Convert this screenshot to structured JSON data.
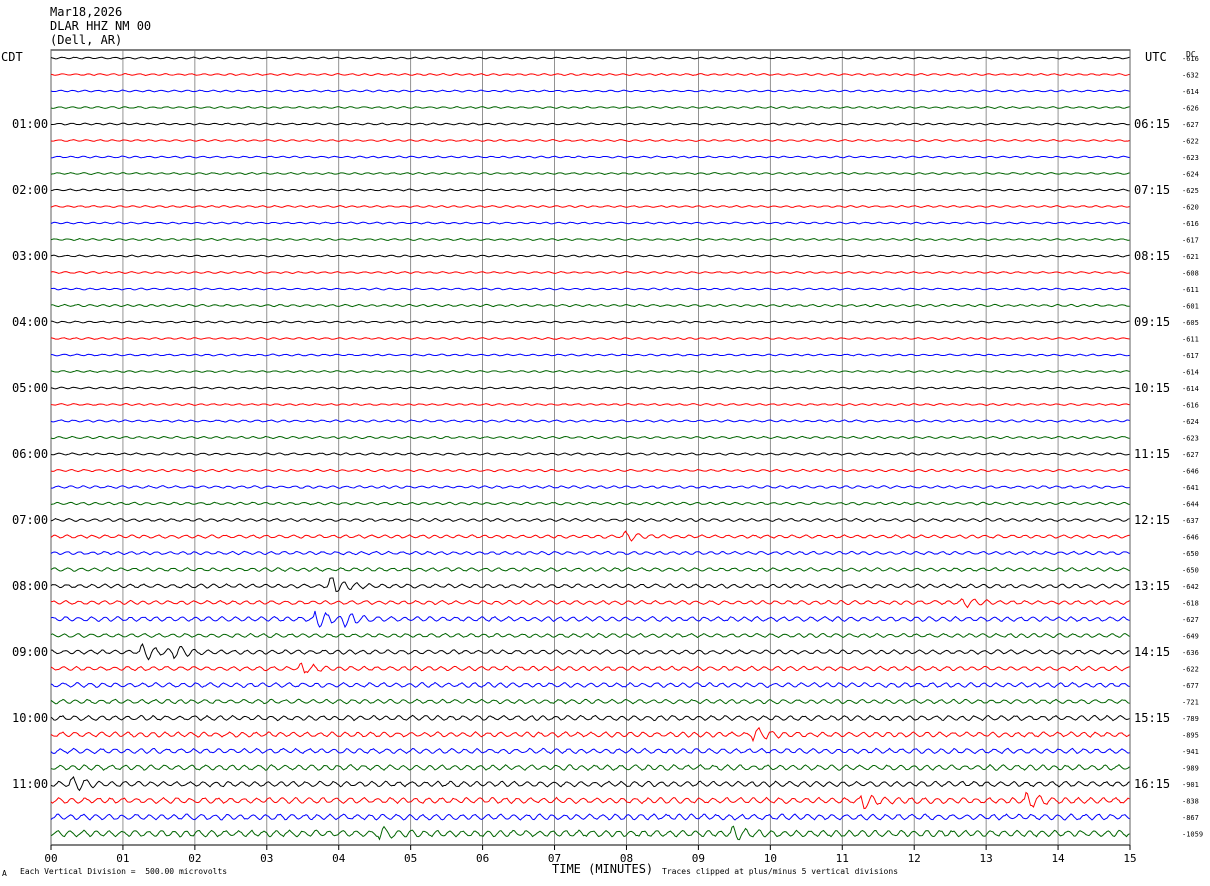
{
  "header": {
    "date": "Mar18,2026",
    "station": "DLAR HHZ NM 00",
    "location": "(Dell, AR)"
  },
  "left_axis_title": "CDT",
  "right_axis_title": "UTC",
  "dc_title": "DC",
  "footer": {
    "left_mark": "A",
    "scale": "Each Vertical Division =  500.00 microvolts",
    "clip": "Traces clipped at plus/minus 5 vertical divisions"
  },
  "colors": {
    "trace_cycle": [
      "#000000",
      "#ff0000",
      "#0000ff",
      "#006400"
    ],
    "grid": "#000000"
  },
  "chart_data": {
    "type": "line",
    "title": "",
    "xlabel": "TIME (MINUTES)",
    "xlim": [
      0,
      15
    ],
    "x_ticks": [
      "00",
      "01",
      "02",
      "03",
      "04",
      "05",
      "06",
      "07",
      "08",
      "09",
      "10",
      "11",
      "12",
      "13",
      "14",
      "15"
    ],
    "trace_count": 48,
    "left_hour_labels": [
      "01:00",
      "02:00",
      "03:00",
      "04:00",
      "05:00",
      "06:00",
      "07:00",
      "08:00",
      "09:00",
      "10:00",
      "11:00"
    ],
    "right_hour_labels": [
      "06:15",
      "07:15",
      "08:15",
      "09:15",
      "10:15",
      "11:15",
      "12:15",
      "13:15",
      "14:15",
      "15:15",
      "16:15"
    ],
    "hour_label_trace_index": [
      4,
      8,
      12,
      16,
      20,
      24,
      28,
      32,
      36,
      40,
      44
    ],
    "dc_offsets": [
      "-616",
      "-632",
      "-614",
      "-626",
      "-627",
      "-622",
      "-623",
      "-624",
      "-625",
      "-620",
      "-616",
      "-617",
      "-621",
      "-608",
      "-611",
      "-601",
      "-605",
      "-611",
      "-617",
      "-614",
      "-614",
      "-616",
      "-624",
      "-623",
      "-627",
      "-646",
      "-641",
      "-644",
      "-637",
      "-646",
      "-650",
      "-650",
      "-642",
      "-618",
      "-627",
      "-649",
      "-636",
      "-622",
      "-677",
      "-721",
      "-789",
      "-895",
      "-941",
      "-989",
      "-901",
      "-838",
      "-867",
      "-1059"
    ],
    "noise_levels": [
      0.25,
      0.25,
      0.25,
      0.25,
      0.25,
      0.25,
      0.25,
      0.25,
      0.25,
      0.25,
      0.25,
      0.25,
      0.25,
      0.25,
      0.25,
      0.3,
      0.25,
      0.25,
      0.25,
      0.25,
      0.25,
      0.25,
      0.3,
      0.3,
      0.3,
      0.3,
      0.35,
      0.35,
      0.4,
      0.45,
      0.45,
      0.5,
      0.55,
      0.55,
      0.65,
      0.55,
      0.6,
      0.6,
      0.65,
      0.6,
      0.7,
      0.7,
      0.7,
      0.75,
      0.75,
      0.8,
      0.8,
      0.9
    ],
    "events": [
      {
        "trace": 29,
        "minute": 8.0,
        "amplitude": 1.2
      },
      {
        "trace": 32,
        "minute": 3.9,
        "amplitude": 3.0
      },
      {
        "trace": 33,
        "minute": 12.7,
        "amplitude": 1.0
      },
      {
        "trace": 34,
        "minute": 3.7,
        "amplitude": 2.6
      },
      {
        "trace": 34,
        "minute": 4.1,
        "amplitude": 2.0
      },
      {
        "trace": 36,
        "minute": 1.3,
        "amplitude": 2.0
      },
      {
        "trace": 36,
        "minute": 1.75,
        "amplitude": 1.5
      },
      {
        "trace": 37,
        "minute": 3.5,
        "amplitude": 1.2
      },
      {
        "trace": 41,
        "minute": 9.8,
        "amplitude": 1.5
      },
      {
        "trace": 44,
        "minute": 0.3,
        "amplitude": 2.0
      },
      {
        "trace": 45,
        "minute": 11.3,
        "amplitude": 2.2
      },
      {
        "trace": 45,
        "minute": 13.6,
        "amplitude": 2.0
      },
      {
        "trace": 47,
        "minute": 4.6,
        "amplitude": 1.3
      },
      {
        "trace": 47,
        "minute": 9.5,
        "amplitude": 1.3
      }
    ]
  }
}
